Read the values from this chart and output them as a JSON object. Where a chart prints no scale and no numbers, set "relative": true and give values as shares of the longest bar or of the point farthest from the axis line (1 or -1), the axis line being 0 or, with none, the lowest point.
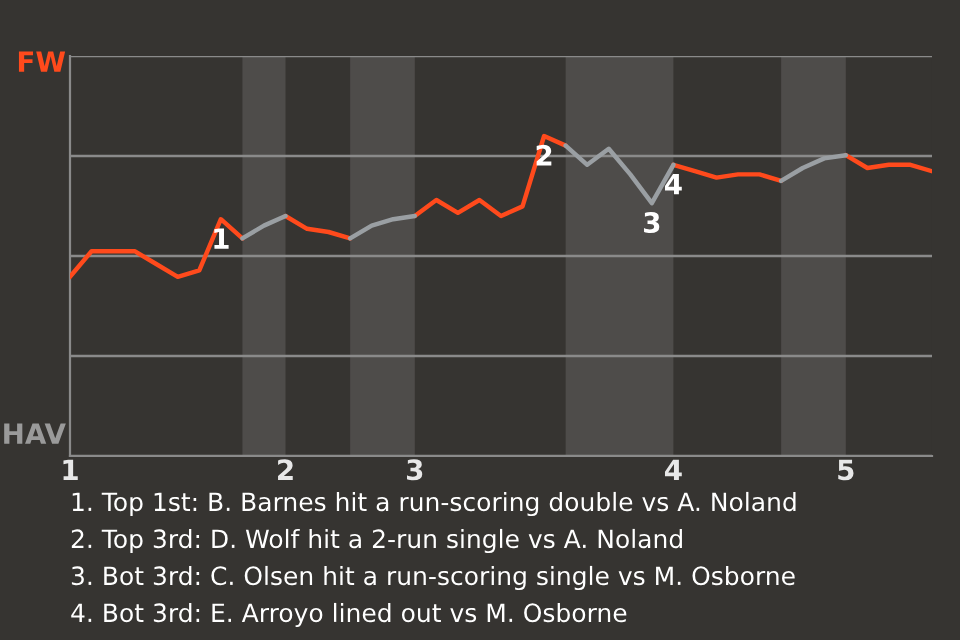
{
  "chart_data": {
    "type": "line",
    "relative": true,
    "categories": [
      "1",
      null,
      null,
      null,
      null,
      null,
      null,
      null,
      null,
      null,
      "2",
      null,
      null,
      null,
      null,
      null,
      "3",
      null,
      null,
      null,
      null,
      null,
      null,
      null,
      null,
      null,
      null,
      null,
      "4",
      null,
      null,
      null,
      null,
      null,
      null,
      null,
      "5",
      null,
      null,
      null,
      null
    ],
    "grid": "y",
    "legend": false,
    "marker": "none",
    "line_style": "solid",
    "series": [
      {
        "color": "#ff4a1c",
        "values": [
          0.56,
          0.64,
          0.64,
          0.64,
          0.6,
          0.56,
          0.58,
          0.74,
          0.68,
          null,
          0.75,
          0.71,
          0.7,
          0.68,
          null,
          null,
          0.75,
          0.8,
          0.76,
          0.8,
          0.75,
          0.78,
          1,
          0.97,
          null,
          null,
          null,
          null,
          0.91,
          0.89,
          0.87,
          0.88,
          0.88,
          0.86,
          null,
          null,
          0.94,
          0.9,
          0.91,
          0.91,
          0.89
        ]
      },
      {
        "color": "#9a9fa3",
        "values": [
          null,
          null,
          null,
          null,
          null,
          null,
          null,
          null,
          0.68,
          0.72,
          0.75,
          null,
          null,
          0.68,
          0.72,
          0.74,
          0.75,
          null,
          null,
          null,
          null,
          null,
          null,
          0.97,
          0.91,
          0.96,
          0.88,
          0.79,
          0.91,
          null,
          null,
          null,
          null,
          0.86,
          0.9,
          0.93,
          0.94,
          null,
          null,
          null,
          null
        ]
      }
    ],
    "annotations": [
      "FW",
      "HAV",
      {
        "text": "1",
        "y": 0.74
      },
      {
        "text": "2",
        "y": 1
      },
      {
        "text": "3",
        "y": 0.79
      },
      {
        "text": "4",
        "y": 0.91
      },
      "1. Top 1st: B. Barnes hit a run-scoring double vs A. Noland",
      "2. Top 3rd: D. Wolf hit a 2-run single vs A. Noland",
      "3. Bot 3rd: C. Olsen hit a run-scoring single vs M. Osborne",
      "4. Bot 3rd: E. Arroyo lined out vs M. Osborne"
    ]
  }
}
